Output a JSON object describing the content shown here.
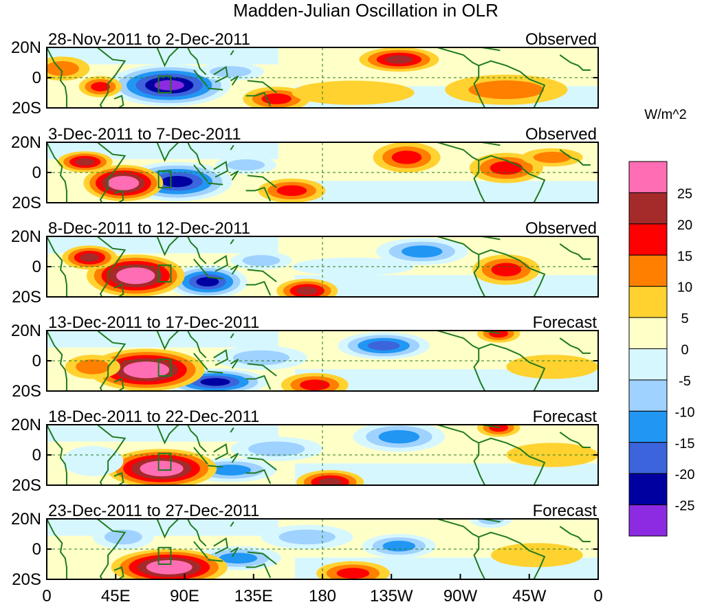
{
  "title": "Madden-Julian Oscillation in OLR",
  "units": "W/m^2",
  "lat_labels": [
    "20N",
    "0",
    "20S"
  ],
  "lon_labels": [
    "0",
    "45E",
    "90E",
    "135E",
    "180",
    "135W",
    "90W",
    "45W",
    "0"
  ],
  "panels": [
    {
      "period": "28-Nov-2011 to 2-Dec-2011",
      "kind": "Observed"
    },
    {
      "period": "3-Dec-2011 to 7-Dec-2011",
      "kind": "Observed"
    },
    {
      "period": "8-Dec-2011 to 12-Dec-2011",
      "kind": "Observed"
    },
    {
      "period": "13-Dec-2011 to 17-Dec-2011",
      "kind": "Forecast"
    },
    {
      "period": "18-Dec-2011 to 22-Dec-2011",
      "kind": "Forecast"
    },
    {
      "period": "23-Dec-2011 to 27-Dec-2011",
      "kind": "Forecast"
    }
  ],
  "colorbar": {
    "labels": [
      "25",
      "20",
      "15",
      "10",
      "5",
      "0",
      "-5",
      "-10",
      "-15",
      "-20",
      "-25"
    ],
    "colors": [
      "#ff6eb4",
      "#a52a2a",
      "#ff0000",
      "#ff7f00",
      "#ffd230",
      "#ffffc8",
      "#d7f7ff",
      "#a0d2ff",
      "#2196f3",
      "#3c64dc",
      "#0000a0",
      "#8c2be2"
    ]
  },
  "colors": {
    "coast": "#1f7a1f",
    "frame": "#000000",
    "pos1": "#ffffc8",
    "pos2": "#ffd230",
    "pos3": "#ff7f00",
    "pos4": "#ff0000",
    "pos5": "#a52a2a",
    "pos6": "#ff6eb4",
    "neg1": "#d7f7ff",
    "neg2": "#a0d2ff",
    "neg3": "#2196f3",
    "neg4": "#3c64dc",
    "neg5": "#0000a0",
    "neg6": "#8c2be2"
  }
}
